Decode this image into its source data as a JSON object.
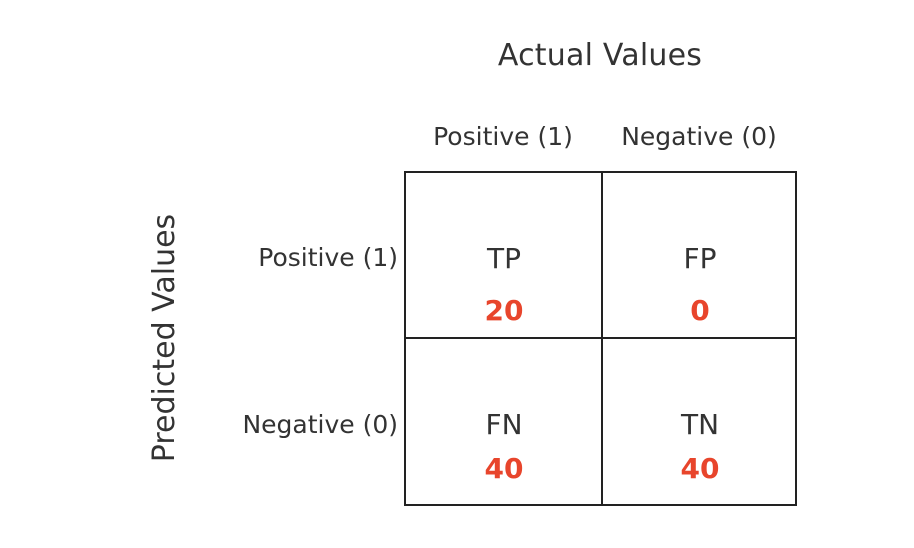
{
  "title": "Actual Values",
  "y_axis_label": "Predicted Values",
  "columns": [
    "Positive (1)",
    "Negative (0)"
  ],
  "rows": [
    "Positive (1)",
    "Negative (0)"
  ],
  "cells": [
    {
      "code": "TP",
      "value": "20"
    },
    {
      "code": "FP",
      "value": "0"
    },
    {
      "code": "FN",
      "value": "40"
    },
    {
      "code": "TN",
      "value": "40"
    }
  ],
  "colors": {
    "value_text": "#e8452c",
    "label_text": "#333333",
    "grid_line": "#222222"
  }
}
